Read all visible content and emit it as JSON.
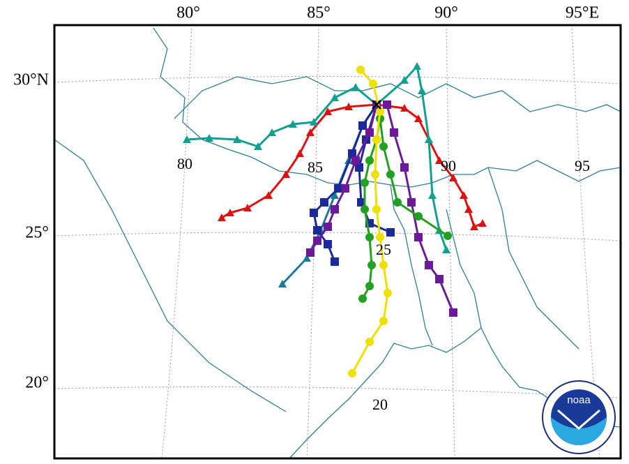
{
  "frame_labels": {
    "top": [
      "80°",
      "85°",
      "90°",
      "95°E"
    ],
    "left": [
      "30°N",
      "25°",
      "20°"
    ]
  },
  "grid_labels": [
    "80",
    "85",
    "90",
    "95",
    "25",
    "20"
  ],
  "logo": {
    "text": "noaa"
  }
}
